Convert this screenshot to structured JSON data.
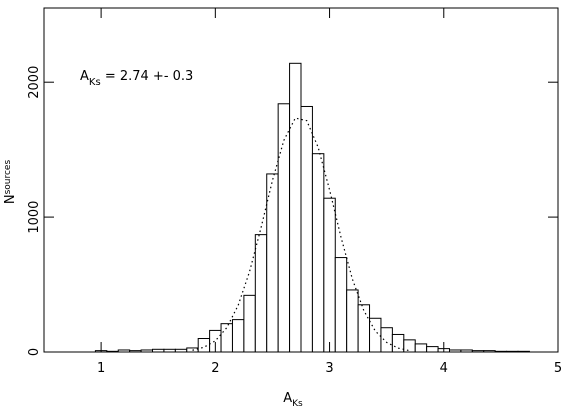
{
  "chart_data": {
    "type": "histogram",
    "bins": [
      0.95,
      1.05,
      1.15,
      1.25,
      1.35,
      1.45,
      1.55,
      1.65,
      1.75,
      1.85,
      1.95,
      2.05,
      2.15,
      2.25,
      2.35,
      2.45,
      2.55,
      2.65,
      2.75,
      2.85,
      2.95,
      3.05,
      3.15,
      3.25,
      3.35,
      3.45,
      3.55,
      3.65,
      3.75,
      3.85,
      3.95,
      4.05,
      4.15,
      4.25,
      4.35,
      4.45,
      4.55,
      4.65,
      4.75
    ],
    "values": [
      10,
      5,
      15,
      10,
      15,
      20,
      20,
      20,
      30,
      100,
      160,
      210,
      240,
      420,
      870,
      1320,
      1840,
      2140,
      1820,
      1470,
      1140,
      700,
      460,
      350,
      250,
      180,
      130,
      90,
      60,
      40,
      25,
      15,
      15,
      10,
      10,
      5,
      5,
      5
    ],
    "fit": {
      "x": [
        1.8,
        1.9,
        2.0,
        2.1,
        2.2,
        2.3,
        2.4,
        2.5,
        2.6,
        2.7,
        2.8,
        2.9,
        3.0,
        3.1,
        3.2,
        3.3,
        3.4,
        3.5,
        3.6,
        3.7
      ],
      "values": [
        13,
        35,
        83,
        180,
        346,
        597,
        921,
        1271,
        1569,
        1734,
        1715,
        1518,
        1202,
        852,
        540,
        307,
        156,
        71,
        29,
        10
      ]
    },
    "xlim": [
      0.5,
      5
    ],
    "ylim": [
      0,
      2550
    ],
    "xticks": [
      1,
      2,
      3,
      4,
      5
    ],
    "yticks": [
      0,
      1000,
      2000
    ],
    "x_label": {
      "base": "A",
      "sub": "Ks"
    },
    "y_label": {
      "base": "N",
      "sub": "sources"
    },
    "annotation": {
      "base": "A",
      "sub": "Ks",
      "text": " = 2.74 +- 0.3"
    }
  }
}
